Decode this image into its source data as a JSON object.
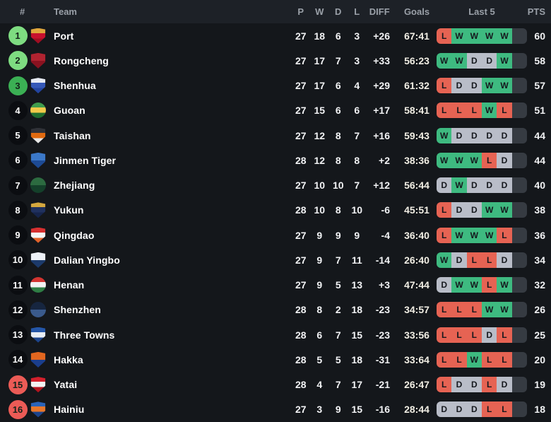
{
  "header": {
    "rank": "#",
    "team": "Team",
    "played": "P",
    "wins": "W",
    "draws": "D",
    "losses": "L",
    "diff": "DIFF",
    "goals": "Goals",
    "last5": "Last 5",
    "points": "PTS"
  },
  "colors": {
    "form": {
      "W": "#3eba80",
      "D": "#b9bdc8",
      "L": "#e66353",
      "empty": "#363b42",
      "text": "#15181d"
    },
    "badges": {
      "champions": "#7edc81",
      "qualification": "#3bb054",
      "relegation": "#eb5b56",
      "default": "#0b0d11",
      "colored_text": "#14231a",
      "default_text": "#ffffff"
    }
  },
  "rows": [
    {
      "rank": 1,
      "zone": "champions",
      "team": "Port",
      "played": 27,
      "wins": 18,
      "draws": 6,
      "losses": 3,
      "diff": "+26",
      "goals": "67:41",
      "last5": [
        "L",
        "W",
        "W",
        "W",
        "W"
      ],
      "points": 60,
      "logo": {
        "shape": "shield",
        "colors": [
          "#e0a63c",
          "#c8102e",
          "#a00e22"
        ]
      }
    },
    {
      "rank": 2,
      "zone": "champions",
      "team": "Rongcheng",
      "played": 27,
      "wins": 17,
      "draws": 7,
      "losses": 3,
      "diff": "+33",
      "goals": "56:23",
      "last5": [
        "W",
        "W",
        "D",
        "D",
        "W"
      ],
      "points": 58,
      "logo": {
        "shape": "shield",
        "colors": [
          "#b02330",
          "#8a1220"
        ]
      }
    },
    {
      "rank": 3,
      "zone": "qualification",
      "team": "Shenhua",
      "played": 27,
      "wins": 17,
      "draws": 6,
      "losses": 4,
      "diff": "+29",
      "goals": "61:32",
      "last5": [
        "L",
        "D",
        "D",
        "W",
        "W"
      ],
      "points": 57,
      "logo": {
        "shape": "shield",
        "colors": [
          "#e8ecf5",
          "#3558b8",
          "#2244a0"
        ]
      }
    },
    {
      "rank": 4,
      "zone": "none",
      "team": "Guoan",
      "played": 27,
      "wins": 15,
      "draws": 6,
      "losses": 6,
      "diff": "+17",
      "goals": "58:41",
      "last5": [
        "L",
        "L",
        "L",
        "W",
        "L"
      ],
      "points": 51,
      "logo": {
        "shape": "circle",
        "colors": [
          "#3f9c4d",
          "#f0c94a",
          "#1f6e2f"
        ]
      }
    },
    {
      "rank": 5,
      "zone": "none",
      "team": "Taishan",
      "played": 27,
      "wins": 12,
      "draws": 8,
      "losses": 7,
      "diff": "+16",
      "goals": "59:43",
      "last5": [
        "W",
        "D",
        "D",
        "D",
        "D"
      ],
      "points": 44,
      "logo": {
        "shape": "shield",
        "colors": [
          "#303238",
          "#e06a10",
          "#e8e8e8"
        ]
      }
    },
    {
      "rank": 6,
      "zone": "none",
      "team": "Jinmen Tiger",
      "played": 28,
      "wins": 12,
      "draws": 8,
      "losses": 8,
      "diff": "+2",
      "goals": "38:36",
      "last5": [
        "W",
        "W",
        "W",
        "L",
        "D"
      ],
      "points": 44,
      "logo": {
        "shape": "shield",
        "colors": [
          "#3b78c8",
          "#1d4a94"
        ]
      }
    },
    {
      "rank": 7,
      "zone": "none",
      "team": "Zhejiang",
      "played": 27,
      "wins": 10,
      "draws": 10,
      "losses": 7,
      "diff": "+12",
      "goals": "56:44",
      "last5": [
        "D",
        "W",
        "D",
        "D",
        "D"
      ],
      "points": 40,
      "logo": {
        "shape": "circle",
        "colors": [
          "#2c6b40",
          "#14402a"
        ]
      }
    },
    {
      "rank": 8,
      "zone": "none",
      "team": "Yukun",
      "played": 28,
      "wins": 10,
      "draws": 8,
      "losses": 10,
      "diff": "-6",
      "goals": "45:51",
      "last5": [
        "L",
        "D",
        "D",
        "W",
        "W"
      ],
      "points": 38,
      "logo": {
        "shape": "shield",
        "colors": [
          "#d4a73e",
          "#20315e",
          "#16244a"
        ]
      }
    },
    {
      "rank": 9,
      "zone": "none",
      "team": "Qingdao",
      "played": 27,
      "wins": 9,
      "draws": 9,
      "losses": 9,
      "diff": "-4",
      "goals": "36:40",
      "last5": [
        "L",
        "W",
        "W",
        "W",
        "L"
      ],
      "points": 36,
      "logo": {
        "shape": "shield",
        "colors": [
          "#d73030",
          "#f5f5f5",
          "#e2622a"
        ]
      }
    },
    {
      "rank": 10,
      "zone": "none",
      "team": "Dalian Yingbo",
      "played": 27,
      "wins": 9,
      "draws": 7,
      "losses": 11,
      "diff": "-14",
      "goals": "26:40",
      "last5": [
        "W",
        "D",
        "L",
        "L",
        "D"
      ],
      "points": 34,
      "logo": {
        "shape": "shield",
        "colors": [
          "#eef2f8",
          "#1c3a6b"
        ]
      }
    },
    {
      "rank": 11,
      "zone": "none",
      "team": "Henan",
      "played": 27,
      "wins": 9,
      "draws": 5,
      "losses": 13,
      "diff": "+3",
      "goals": "47:44",
      "last5": [
        "D",
        "W",
        "W",
        "L",
        "W"
      ],
      "points": 32,
      "logo": {
        "shape": "circle",
        "colors": [
          "#d23430",
          "#f2f2f2",
          "#2e7d44"
        ]
      }
    },
    {
      "rank": 12,
      "zone": "none",
      "team": "Shenzhen",
      "played": 28,
      "wins": 8,
      "draws": 2,
      "losses": 18,
      "diff": "-23",
      "goals": "34:57",
      "last5": [
        "L",
        "L",
        "L",
        "W",
        "W"
      ],
      "points": 26,
      "logo": {
        "shape": "circle",
        "colors": [
          "#16253f",
          "#3a5a8c"
        ]
      }
    },
    {
      "rank": 13,
      "zone": "none",
      "team": "Three Towns",
      "played": 28,
      "wins": 6,
      "draws": 7,
      "losses": 15,
      "diff": "-23",
      "goals": "33:56",
      "last5": [
        "L",
        "L",
        "L",
        "D",
        "L"
      ],
      "points": 25,
      "logo": {
        "shape": "shield",
        "colors": [
          "#2456a8",
          "#e8edf5",
          "#1c448c"
        ]
      }
    },
    {
      "rank": 14,
      "zone": "none",
      "team": "Hakka",
      "played": 28,
      "wins": 5,
      "draws": 5,
      "losses": 18,
      "diff": "-31",
      "goals": "33:64",
      "last5": [
        "L",
        "L",
        "W",
        "L",
        "L"
      ],
      "points": 20,
      "logo": {
        "shape": "shield",
        "colors": [
          "#e2661f",
          "#1b3e8c"
        ]
      }
    },
    {
      "rank": 15,
      "zone": "relegation",
      "team": "Yatai",
      "played": 28,
      "wins": 4,
      "draws": 7,
      "losses": 17,
      "diff": "-21",
      "goals": "26:47",
      "last5": [
        "L",
        "D",
        "D",
        "L",
        "D"
      ],
      "points": 19,
      "logo": {
        "shape": "shield",
        "colors": [
          "#d21f2b",
          "#f2f2f2",
          "#b3141f"
        ]
      }
    },
    {
      "rank": 16,
      "zone": "relegation",
      "team": "Hainiu",
      "played": 27,
      "wins": 3,
      "draws": 9,
      "losses": 15,
      "diff": "-16",
      "goals": "28:44",
      "last5": [
        "D",
        "D",
        "D",
        "L",
        "L"
      ],
      "points": 18,
      "logo": {
        "shape": "shield",
        "colors": [
          "#2a63b8",
          "#e8762a",
          "#1c448c"
        ]
      }
    }
  ]
}
